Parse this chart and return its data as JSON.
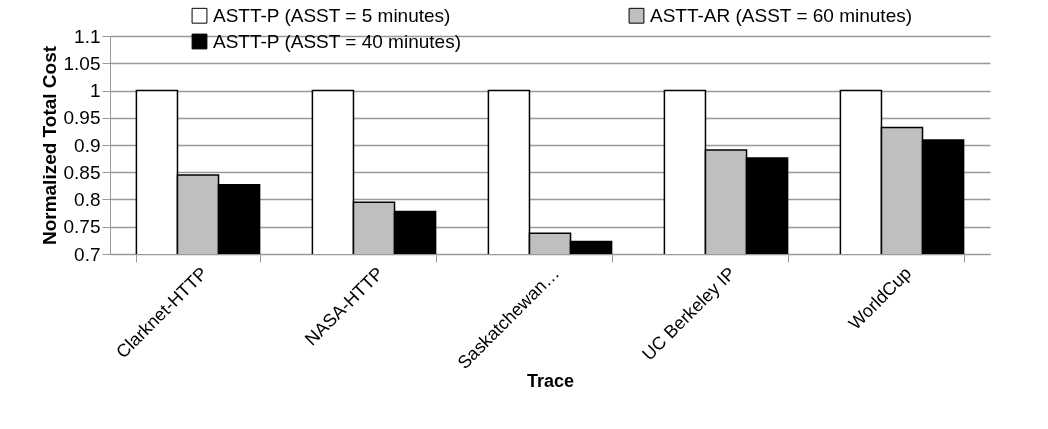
{
  "chart_data": {
    "type": "bar",
    "xlabel": "Trace",
    "ylabel": "Normalized Total Cost",
    "categories": [
      "Clarknet-HTTP",
      "NASA-HTTP",
      "Saskatchewan…",
      "UC Berkeley IP",
      "WorldCup"
    ],
    "series": [
      {
        "name": "ASTT-P (ASST = 5 minutes)",
        "color": "#ffffff",
        "values": [
          1,
          1,
          1,
          1,
          1
        ]
      },
      {
        "name": "ASTT-AR  (ASST = 60 minutes)",
        "color": "#bfbfbf",
        "values": [
          0.845,
          0.795,
          0.738,
          0.891,
          0.932
        ]
      },
      {
        "name": "ASTT-P  (ASST = 40 minutes)",
        "color": "#000000",
        "values": [
          0.827,
          0.778,
          0.723,
          0.876,
          0.909
        ]
      }
    ],
    "ylim": [
      0.7,
      1.1
    ],
    "yticks": [
      0.7,
      0.75,
      0.8,
      0.85,
      0.9,
      0.95,
      1,
      1.05,
      1.1
    ],
    "grid": "y",
    "legend": "top"
  }
}
